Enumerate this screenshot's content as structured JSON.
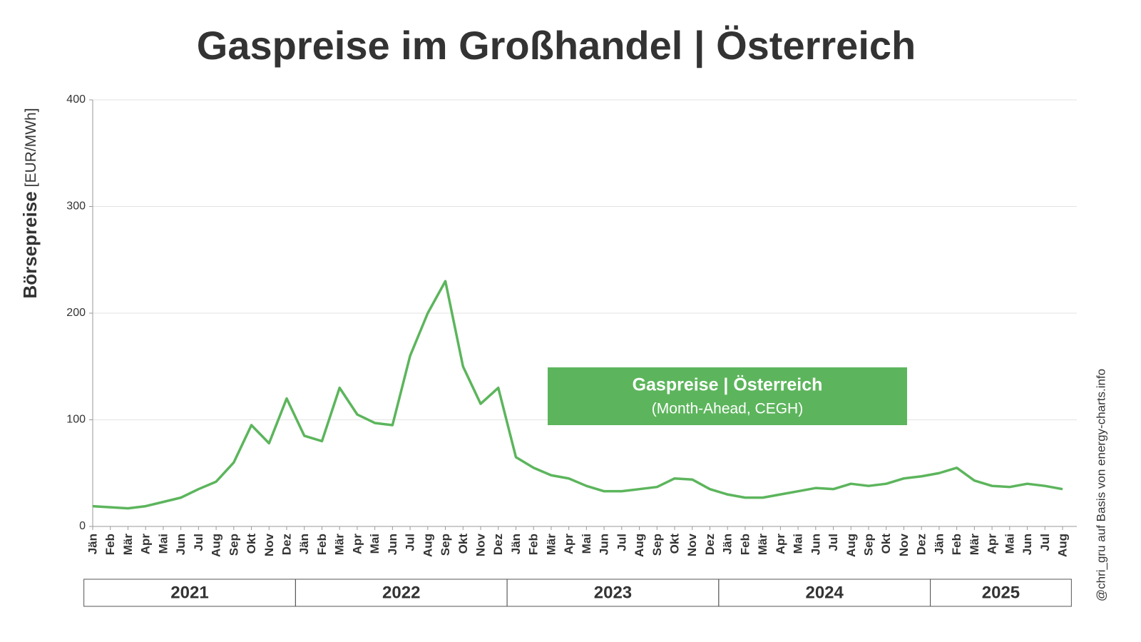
{
  "chart_data": {
    "type": "line",
    "title": "Gaspreise im Großhandel | Österreich",
    "ylabel": "Börsepreise",
    "yunit": "[EUR/MWh]",
    "categories": [
      "Jän",
      "Feb",
      "Mär",
      "Apr",
      "Mai",
      "Jun",
      "Jul",
      "Aug",
      "Sep",
      "Okt",
      "Nov",
      "Dez",
      "Jän",
      "Feb",
      "Mär",
      "Apr",
      "Mai",
      "Jun",
      "Jul",
      "Aug",
      "Sep",
      "Okt",
      "Nov",
      "Dez",
      "Jän",
      "Feb",
      "Mär",
      "Apr",
      "Mai",
      "Jun",
      "Jul",
      "Aug",
      "Sep",
      "Okt",
      "Nov",
      "Dez",
      "Jän",
      "Feb",
      "Mär",
      "Apr",
      "Mai",
      "Jun",
      "Jul",
      "Aug",
      "Sep",
      "Okt",
      "Nov",
      "Dez",
      "Jän",
      "Feb",
      "Mär",
      "Apr",
      "Mai",
      "Jun",
      "Jul",
      "Aug"
    ],
    "x_groups": [
      "2021",
      "2022",
      "2023",
      "2024",
      "2025"
    ],
    "series": [
      {
        "name": "Gaspreise | Österreich",
        "color": "#5cb55c",
        "values": [
          19,
          18,
          17,
          19,
          23,
          27,
          35,
          42,
          60,
          95,
          78,
          120,
          85,
          80,
          130,
          105,
          97,
          95,
          160,
          200,
          230,
          150,
          115,
          130,
          65,
          55,
          48,
          45,
          38,
          33,
          33,
          35,
          37,
          45,
          44,
          35,
          30,
          27,
          27,
          30,
          33,
          36,
          35,
          40,
          38,
          40,
          45,
          47,
          50,
          55,
          43,
          38,
          37,
          40,
          38,
          35
        ]
      }
    ],
    "annotation": {
      "title": "Gaspreise | Österreich",
      "subtitle": "(Month-Ahead, CEGH)"
    },
    "credit": "@chri_gru auf Basis von energy-charts.info",
    "ylim": [
      0,
      400
    ],
    "yticks": [
      0,
      100,
      200,
      300,
      400
    ],
    "grid": true
  }
}
